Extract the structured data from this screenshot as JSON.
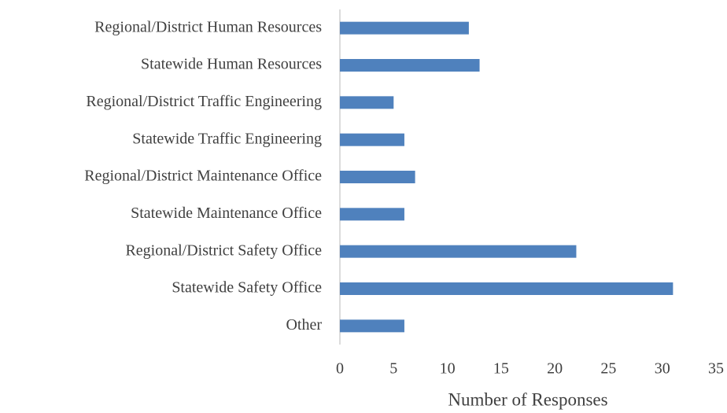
{
  "chart_data": {
    "type": "bar",
    "orientation": "horizontal",
    "x_label": "Number of Responses",
    "categories": [
      "Regional/District Human Resources",
      "Statewide Human Resources",
      "Regional/District Traffic Engineering",
      "Statewide Traffic Engineering",
      "Regional/District Maintenance Office",
      "Statewide Maintenance Office",
      "Regional/District Safety Office",
      "Statewide Safety Office",
      "Other"
    ],
    "values": [
      12,
      13,
      5,
      6,
      7,
      6,
      22,
      31,
      6
    ],
    "color": "#4f81bd",
    "xlim": [
      0,
      35
    ],
    "xticks": [
      0,
      5,
      10,
      15,
      20,
      25,
      30,
      35
    ],
    "grid": false
  }
}
